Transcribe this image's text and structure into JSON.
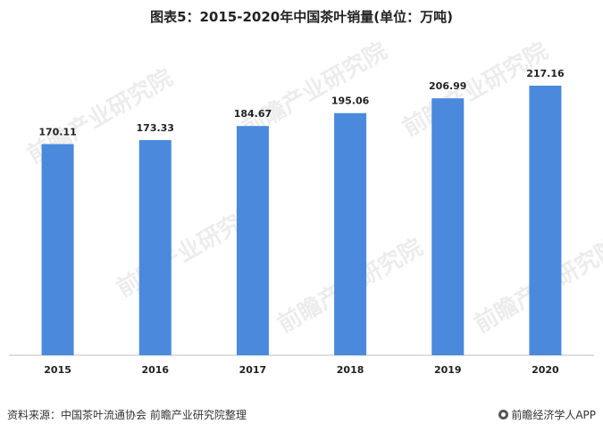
{
  "title": "图表5：2015-2020年中国茶叶销量(单位：万吨)",
  "source": "资料来源：中国茶叶流通协会 前瞻产业研究院整理",
  "brand": "前瞻经济学人APP",
  "watermark": "前瞻产业研究院",
  "colors": {
    "bar": "#4a89dc",
    "axis": "#bfbfbf",
    "text": "#222222"
  },
  "chart_data": {
    "type": "bar",
    "title": "图表5：2015-2020年中国茶叶销量(单位：万吨)",
    "xlabel": "",
    "ylabel": "",
    "categories": [
      "2015",
      "2016",
      "2017",
      "2018",
      "2019",
      "2020"
    ],
    "values": [
      170.11,
      173.33,
      184.67,
      195.06,
      206.99,
      217.16
    ],
    "value_labels": [
      "170.11",
      "173.33",
      "184.67",
      "195.06",
      "206.99",
      "217.16"
    ],
    "ylim": [
      0,
      230
    ],
    "grid": false,
    "legend": "none"
  }
}
